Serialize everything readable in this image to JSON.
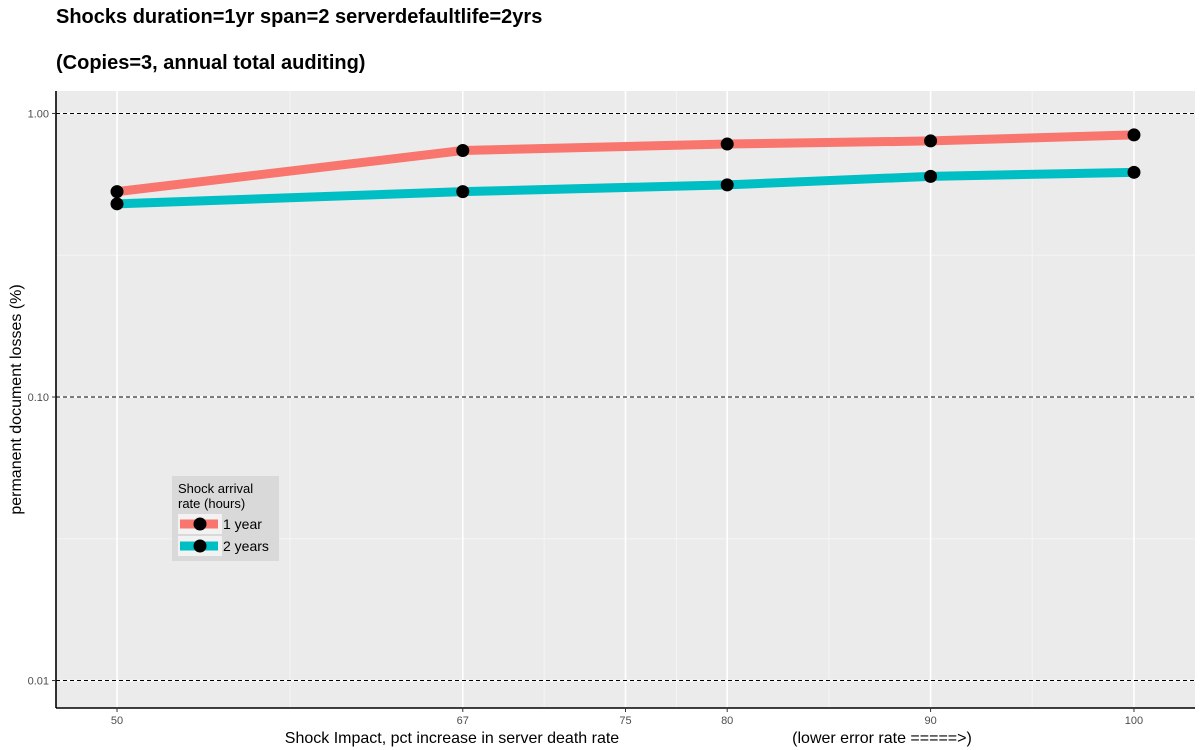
{
  "chart_data": {
    "type": "line",
    "title": "Shocks duration=1yr span=2 serverdefaultlife=2yrs",
    "subtitle": "(Copies=3, annual total auditing)",
    "xlabel": "Shock Impact, pct increase in server death rate",
    "xlabel_note": "(lower error rate =====>)",
    "ylabel": "permanent document losses (%)",
    "y_scale": "log",
    "ylim": [
      0.008,
      1.2
    ],
    "xlim": [
      47,
      103
    ],
    "x_ticks": [
      50,
      67,
      75,
      80,
      90,
      100
    ],
    "y_ticks": [
      0.01,
      0.1,
      1.0
    ],
    "y_tick_labels": [
      "0.01",
      "0.10",
      "1.00"
    ],
    "x": [
      50,
      67,
      80,
      90,
      100
    ],
    "series": [
      {
        "name": "1 year",
        "color": "#F8766D",
        "values": [
          0.53,
          0.74,
          0.78,
          0.8,
          0.84
        ]
      },
      {
        "name": "2 years",
        "color": "#00BFC4",
        "values": [
          0.48,
          0.53,
          0.56,
          0.6,
          0.62
        ]
      }
    ],
    "legend": {
      "title_lines": [
        "Shock arrival",
        "rate (hours)"
      ],
      "placement": "inside-bottom-left"
    },
    "grid": true,
    "reference_lines": {
      "y": [
        0.01,
        0.1,
        1.0
      ],
      "style": "dashed"
    }
  }
}
